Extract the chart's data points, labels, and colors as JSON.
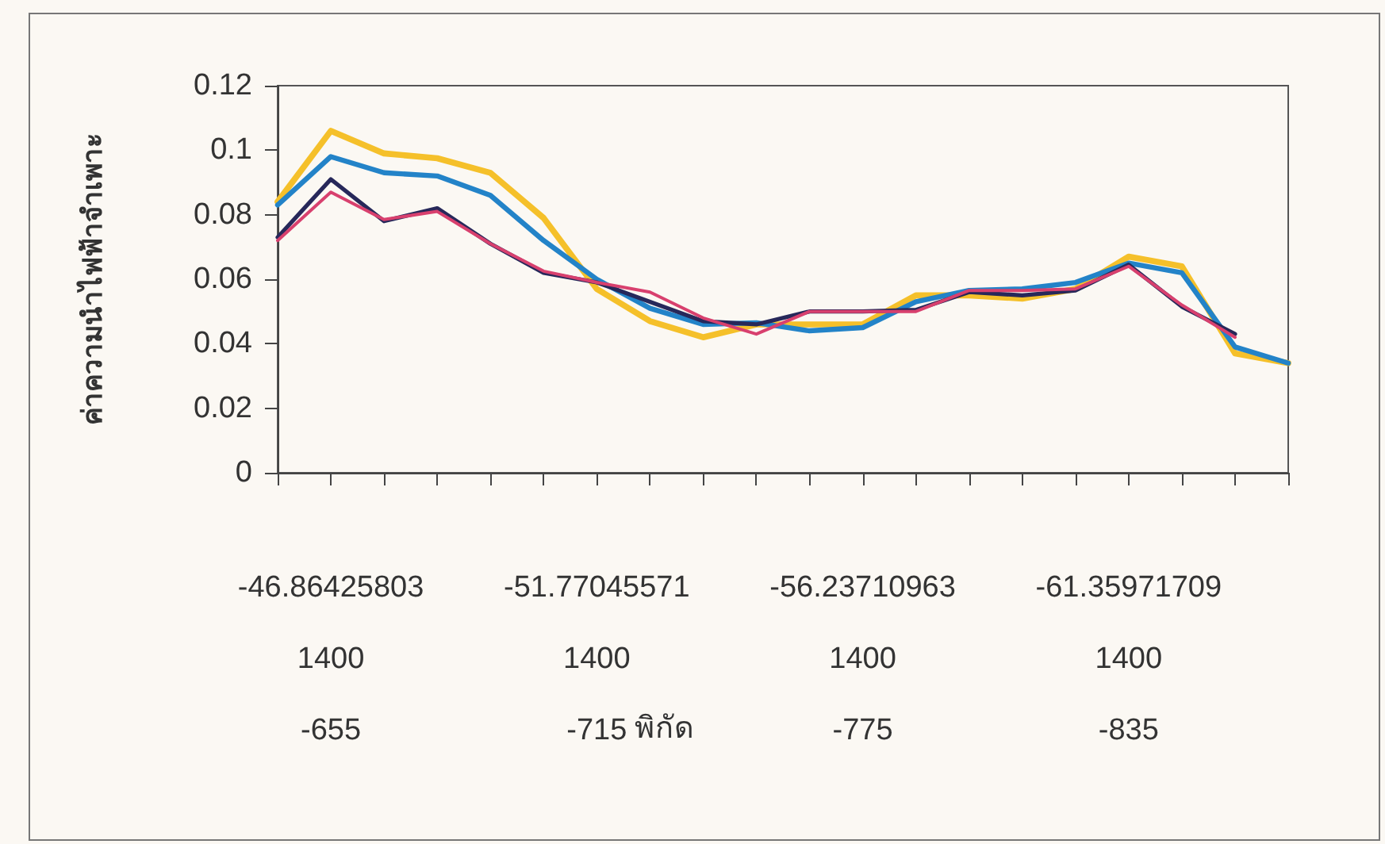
{
  "chart_data": {
    "type": "line",
    "ylabel": "ค่าความนำไฟฟ้าจำเพาะ",
    "annotations": [
      "พิกัด"
    ],
    "categories": [
      null,
      "-46.86425803\n1400\n-655",
      null,
      null,
      null,
      null,
      "-51.77045571\n1400\n-715",
      null,
      null,
      null,
      null,
      "-56.23710963\n1400\n-775",
      null,
      null,
      null,
      null,
      "-61.35971709\n1400\n-835",
      null,
      null,
      null
    ],
    "series": [
      {
        "color": "#f5c02a",
        "values": [
          0.084,
          0.106,
          0.099,
          0.0975,
          0.093,
          0.079,
          0.057,
          0.047,
          0.042,
          0.046,
          0.046,
          0.046,
          0.055,
          0.055,
          0.054,
          0.057,
          0.067,
          0.064,
          0.037,
          0.034
        ]
      },
      {
        "color": "#2383c8",
        "values": [
          0.083,
          0.098,
          0.093,
          0.092,
          0.086,
          0.072,
          0.06,
          0.051,
          0.046,
          0.0465,
          0.044,
          0.045,
          0.053,
          0.0565,
          0.057,
          0.059,
          0.065,
          0.062,
          0.039,
          0.034
        ]
      },
      {
        "color": "#27285a",
        "values": [
          0.073,
          0.091,
          0.078,
          0.082,
          0.071,
          0.062,
          0.059,
          0.053,
          0.047,
          0.046,
          0.05,
          0.05,
          0.0505,
          0.056,
          0.055,
          0.0565,
          0.0645,
          0.0515,
          0.043,
          null
        ]
      },
      {
        "color": "#d8406e",
        "values": [
          0.072,
          0.087,
          0.0785,
          0.081,
          0.071,
          0.0625,
          0.059,
          0.056,
          0.048,
          0.043,
          0.05,
          0.05,
          0.05,
          0.0565,
          0.0565,
          0.057,
          0.064,
          0.052,
          0.042,
          null
        ]
      }
    ],
    "ylim": [
      0,
      0.12
    ],
    "yticks": [
      0,
      0.02,
      0.04,
      0.06,
      0.08,
      0.1,
      0.12
    ],
    "grid": false,
    "marker": "none",
    "line_style": "solid"
  }
}
